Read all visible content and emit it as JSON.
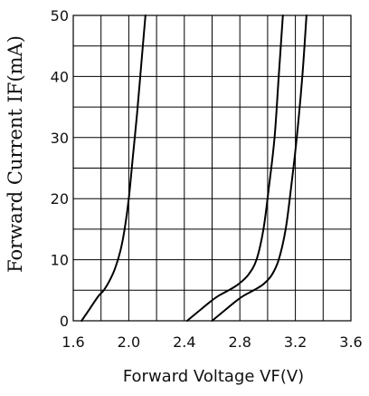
{
  "chart_data": {
    "type": "line",
    "xlabel": "Forward Voltage VF(V)",
    "ylabel": "Forward Current IF(mA)",
    "xlim": [
      1.6,
      3.6
    ],
    "ylim": [
      0,
      50
    ],
    "x_ticks": [
      "1.6",
      "2.0",
      "2.4",
      "2.8",
      "3.2",
      "3.6"
    ],
    "y_ticks": [
      "0",
      "10",
      "20",
      "30",
      "40",
      "50"
    ],
    "grid": true,
    "colors": {
      "curve": "#000000",
      "grid": "#000000",
      "background": "#ffffff"
    },
    "series": [
      {
        "x": [
          1.66,
          1.72,
          1.78,
          1.82,
          1.86,
          1.9,
          1.94,
          1.97,
          2.0,
          2.03,
          2.06,
          2.09,
          2.12
        ],
        "y": [
          0,
          2,
          4,
          5,
          6.5,
          8.5,
          11.5,
          15,
          20,
          27,
          34,
          42,
          50
        ]
      },
      {
        "x": [
          2.42,
          2.5,
          2.58,
          2.64,
          2.72,
          2.79,
          2.86,
          2.92,
          2.97,
          3.01,
          3.05,
          3.08,
          3.11
        ],
        "y": [
          0,
          1.5,
          3,
          4,
          5,
          6,
          7.5,
          10,
          15,
          22,
          30,
          40,
          50
        ]
      },
      {
        "x": [
          2.6,
          2.68,
          2.76,
          2.82,
          2.9,
          2.97,
          3.03,
          3.08,
          3.13,
          3.17,
          3.21,
          3.25,
          3.28
        ],
        "y": [
          0,
          1.5,
          3,
          4,
          5,
          6,
          7.5,
          10,
          15,
          22,
          30,
          40,
          50
        ]
      }
    ]
  }
}
